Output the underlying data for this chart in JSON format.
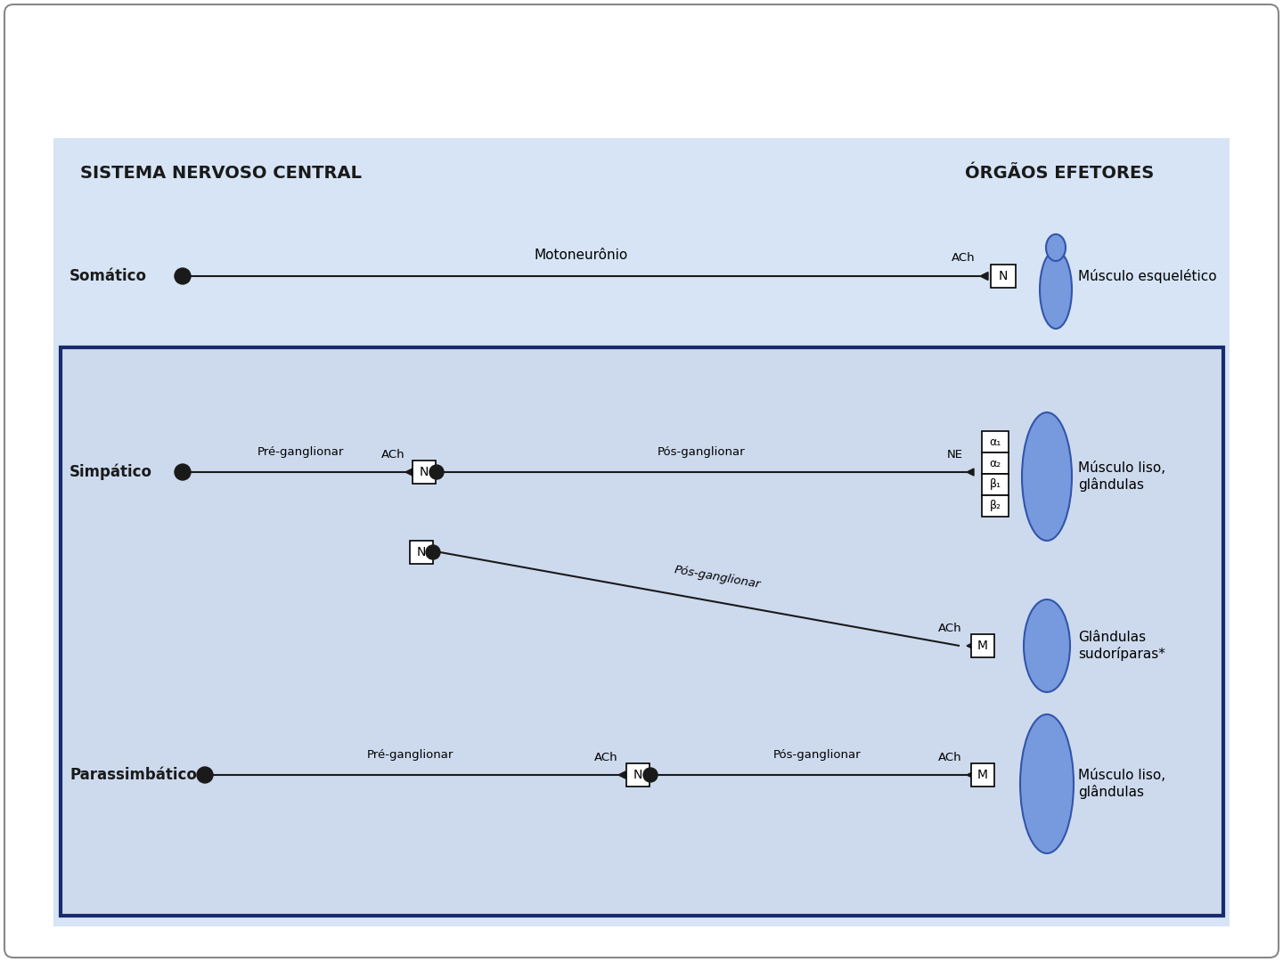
{
  "bg_outer": "#ffffff",
  "bg_panel": "#d6e4f5",
  "bg_panel_inner": "#cddaee",
  "ans_box_color": "#1a2a6e",
  "line_color": "#1a1a1a",
  "neuron_color": "#1a1a1a",
  "muscle_color_light": "#7799dd",
  "muscle_color_dark": "#4466bb",
  "receptor_box_bg": "#ffffff",
  "receptor_box_border": "#1a1a1a",
  "title_snc": "SISTEMA NERVOSO CENTRAL",
  "title_oe": "ÓRGÃOS EFETORES",
  "label_somatic": "Somático",
  "label_simpatico": "Simpático",
  "label_parassimpatico": "Parassimbático",
  "text_motoneuron": "Motoneurônio",
  "text_pre": "Pré-ganglionar",
  "text_pos": "Pós-ganglionar",
  "text_ach": "ACh",
  "text_ne": "NE",
  "text_N": "N",
  "text_M": "M",
  "text_muscle_skeletal": "Músculo esquelético",
  "text_muscle_smooth": "Músculo liso,\nglândulas",
  "text_glandulas_sudo": "Glândulas\nsudoríparas*",
  "receptors_simp": [
    "α₁",
    "α₂",
    "β₁",
    "β₂"
  ]
}
